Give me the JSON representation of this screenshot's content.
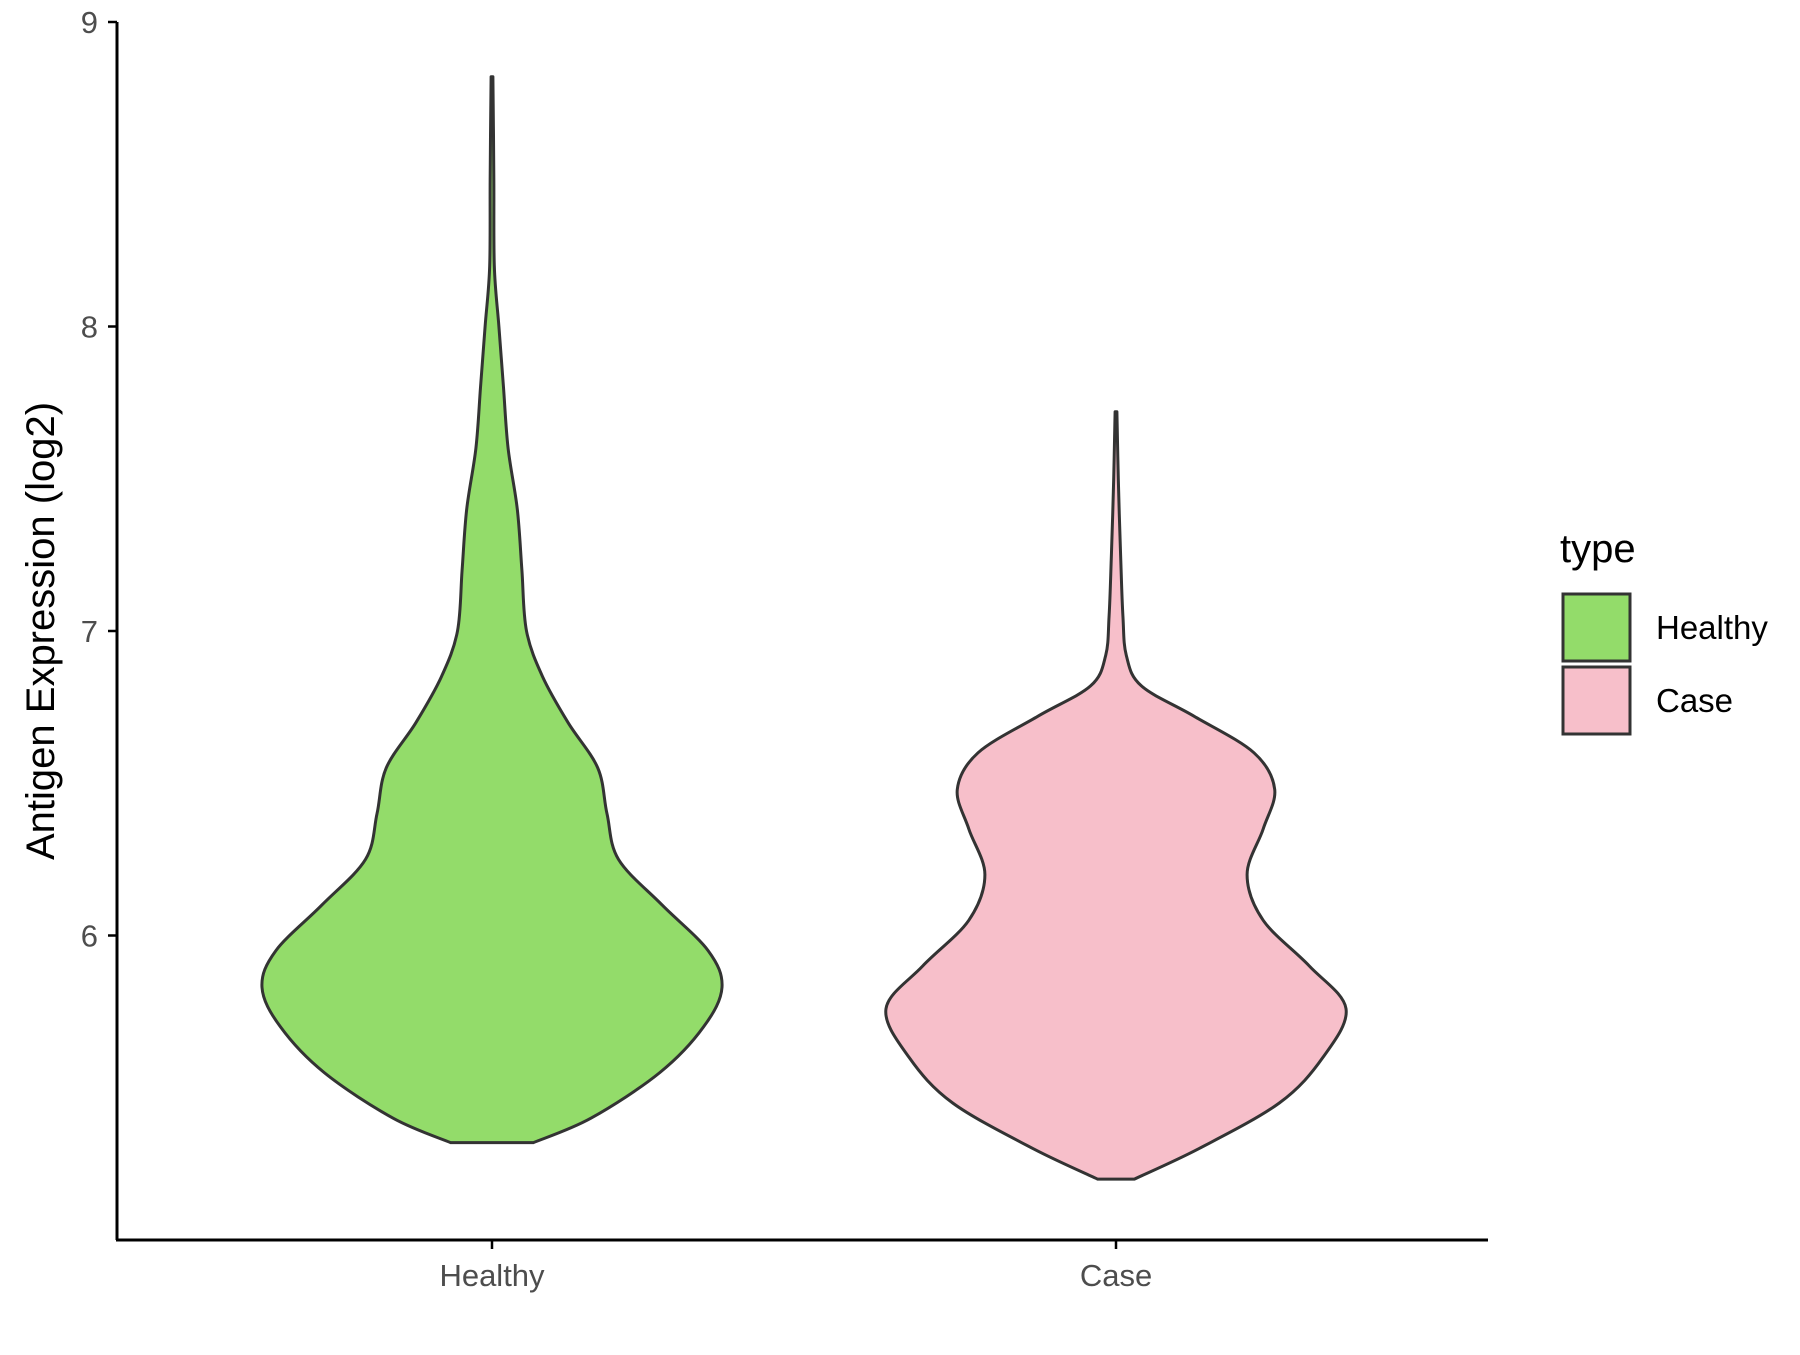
{
  "chart_data": {
    "type": "violin",
    "title": "",
    "xlabel": "",
    "ylabel": "Antigen Expression (log2)",
    "ylim": [
      5.0,
      9.0
    ],
    "y_ticks": [
      "6",
      "7",
      "8",
      "9"
    ],
    "categories": [
      "Healthy",
      "Case"
    ],
    "grid": false,
    "legend": {
      "title": "type",
      "position": "right",
      "entries": [
        {
          "label": "Healthy",
          "color": "#93dc6a"
        },
        {
          "label": "Case",
          "color": "#f7bfca"
        }
      ]
    },
    "series": [
      {
        "name": "Healthy",
        "color": "#93dc6a",
        "min": 5.32,
        "max": 8.82,
        "density_profile": [
          [
            5.32,
            0.18
          ],
          [
            5.4,
            0.43
          ],
          [
            5.55,
            0.73
          ],
          [
            5.7,
            0.92
          ],
          [
            5.83,
            1.0
          ],
          [
            5.95,
            0.94
          ],
          [
            6.1,
            0.74
          ],
          [
            6.25,
            0.55
          ],
          [
            6.4,
            0.5
          ],
          [
            6.55,
            0.46
          ],
          [
            6.7,
            0.33
          ],
          [
            6.85,
            0.22
          ],
          [
            7.0,
            0.15
          ],
          [
            7.2,
            0.13
          ],
          [
            7.4,
            0.11
          ],
          [
            7.6,
            0.07
          ],
          [
            7.8,
            0.05
          ],
          [
            8.0,
            0.03
          ],
          [
            8.2,
            0.01
          ],
          [
            8.5,
            0.008
          ],
          [
            8.82,
            0.004
          ]
        ]
      },
      {
        "name": "Case",
        "color": "#f7bfca",
        "min": 5.2,
        "max": 7.72,
        "density_profile": [
          [
            5.2,
            0.08
          ],
          [
            5.3,
            0.36
          ],
          [
            5.45,
            0.71
          ],
          [
            5.6,
            0.9
          ],
          [
            5.76,
            1.0
          ],
          [
            5.9,
            0.84
          ],
          [
            6.05,
            0.64
          ],
          [
            6.2,
            0.57
          ],
          [
            6.35,
            0.64
          ],
          [
            6.48,
            0.69
          ],
          [
            6.6,
            0.6
          ],
          [
            6.72,
            0.34
          ],
          [
            6.82,
            0.11
          ],
          [
            6.92,
            0.045
          ],
          [
            7.05,
            0.03
          ],
          [
            7.25,
            0.02
          ],
          [
            7.5,
            0.01
          ],
          [
            7.72,
            0.004
          ]
        ]
      }
    ]
  }
}
